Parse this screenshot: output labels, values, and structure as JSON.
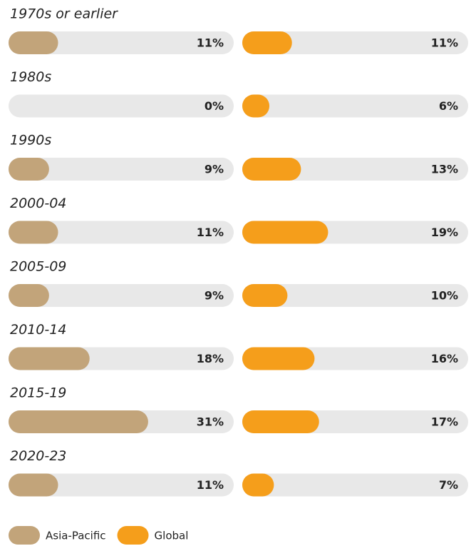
{
  "chart_data": {
    "type": "bar",
    "orientation": "horizontal",
    "categories": [
      "1970s or earlier",
      "1980s",
      "1990s",
      "2000-04",
      "2005-09",
      "2010-14",
      "2015-19",
      "2020-23"
    ],
    "xlim": [
      0,
      50
    ],
    "track_color": "#e8e8e8",
    "series": [
      {
        "name": "Asia-Pacific",
        "color": "#c2a47a",
        "values": [
          11,
          0,
          9,
          11,
          9,
          18,
          31,
          11
        ],
        "value_labels": [
          "11%",
          "0%",
          "9%",
          "11%",
          "9%",
          "18%",
          "31%",
          "11%"
        ]
      },
      {
        "name": "Global",
        "color": "#f59e1b",
        "values": [
          11,
          6,
          13,
          19,
          10,
          16,
          17,
          7
        ],
        "value_labels": [
          "11%",
          "6%",
          "13%",
          "19%",
          "10%",
          "16%",
          "17%",
          "7%"
        ]
      }
    ],
    "legend": "bottom-left"
  }
}
